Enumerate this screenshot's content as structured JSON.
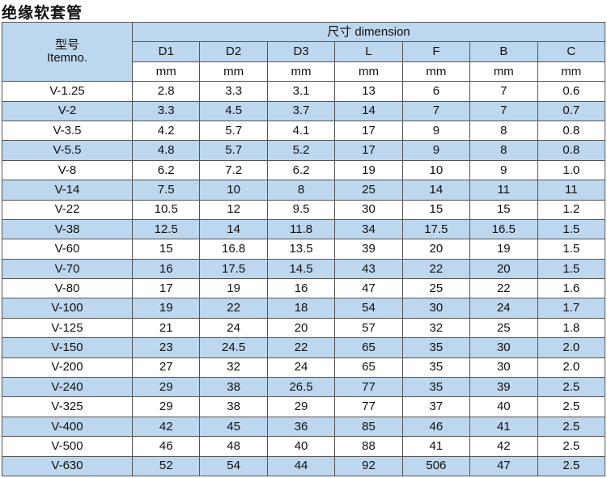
{
  "header": {
    "title": "绝缘软套管"
  },
  "table": {
    "item_header": [
      "型号",
      "Itemno."
    ],
    "dimension_header": "尺寸 dimension",
    "columns": [
      "D1",
      "D2",
      "D3",
      "L",
      "F",
      "B",
      "C"
    ],
    "units": [
      "mm",
      "mm",
      "mm",
      "mm",
      "mm",
      "mm",
      "mm"
    ],
    "rows": [
      [
        "V-1.25",
        "2.8",
        "3.3",
        "3.1",
        "13",
        "6",
        "7",
        "0.6"
      ],
      [
        "V-2",
        "3.3",
        "4.5",
        "3.7",
        "14",
        "7",
        "7",
        "0.7"
      ],
      [
        "V-3.5",
        "4.2",
        "5.7",
        "4.1",
        "17",
        "9",
        "8",
        "0.8"
      ],
      [
        "V-5.5",
        "4.8",
        "5.7",
        "5.2",
        "17",
        "9",
        "8",
        "0.8"
      ],
      [
        "V-8",
        "6.2",
        "7.2",
        "6.2",
        "19",
        "10",
        "9",
        "1.0"
      ],
      [
        "V-14",
        "7.5",
        "10",
        "8",
        "25",
        "14",
        "11",
        "11"
      ],
      [
        "V-22",
        "10.5",
        "12",
        "9.5",
        "30",
        "15",
        "15",
        "1.2"
      ],
      [
        "V-38",
        "12.5",
        "14",
        "11.8",
        "34",
        "17.5",
        "16.5",
        "1.5"
      ],
      [
        "V-60",
        "15",
        "16.8",
        "13.5",
        "39",
        "20",
        "19",
        "1.5"
      ],
      [
        "V-70",
        "16",
        "17.5",
        "14.5",
        "43",
        "22",
        "20",
        "1.5"
      ],
      [
        "V-80",
        "17",
        "19",
        "16",
        "47",
        "25",
        "22",
        "1.6"
      ],
      [
        "V-100",
        "19",
        "22",
        "18",
        "54",
        "30",
        "24",
        "1.7"
      ],
      [
        "V-125",
        "21",
        "24",
        "20",
        "57",
        "32",
        "25",
        "1.8"
      ],
      [
        "V-150",
        "23",
        "24.5",
        "22",
        "65",
        "35",
        "30",
        "2.0"
      ],
      [
        "V-200",
        "27",
        "32",
        "24",
        "65",
        "35",
        "30",
        "2.0"
      ],
      [
        "V-240",
        "29",
        "38",
        "26.5",
        "77",
        "35",
        "39",
        "2.5"
      ],
      [
        "V-325",
        "29",
        "38",
        "29",
        "77",
        "37",
        "40",
        "2.5"
      ],
      [
        "V-400",
        "42",
        "45",
        "36",
        "85",
        "46",
        "41",
        "2.5"
      ],
      [
        "V-500",
        "46",
        "48",
        "40",
        "88",
        "41",
        "42",
        "2.5"
      ],
      [
        "V-630",
        "52",
        "54",
        "44",
        "92",
        "506",
        "47",
        "2.5"
      ]
    ]
  }
}
